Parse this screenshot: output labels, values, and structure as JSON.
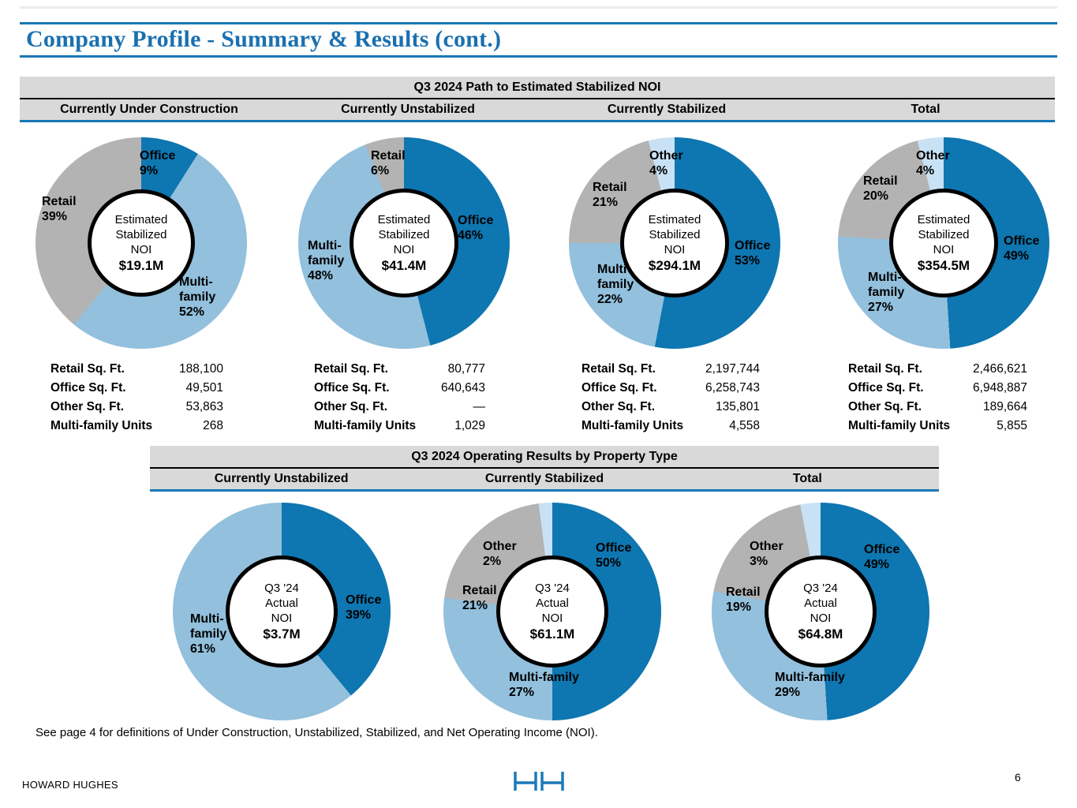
{
  "slide": {
    "title": "Company Profile - Summary & Results (cont.)",
    "note": "See page 4 for definitions of Under Construction, Unstabilized, Stabilized, and Net Operating Income (NOI).",
    "company": "HOWARD HUGHES",
    "page_number": "6",
    "logo_icon": "hh-logo"
  },
  "colors": {
    "office": "#0e76b0",
    "multifamily": "#92c0dd",
    "retail": "#b3b3b3",
    "other": "#c8e1f4",
    "accent": "#1878b6",
    "band": "#d9d9d9",
    "title_blue": "#1a70b0"
  },
  "section1": {
    "title": "Q3 2024 Path to Estimated Stabilized NOI",
    "columns": [
      "Currently Under Construction",
      "Currently Unstabilized",
      "Currently Stabilized",
      "Total"
    ],
    "stats_row_labels": [
      "Retail Sq. Ft.",
      "Office Sq. Ft.",
      "Other Sq. Ft.",
      "Multi-family Units"
    ],
    "stats": [
      {
        "column": "Currently Under Construction",
        "values": [
          "188,100",
          "49,501",
          "53,863",
          "268"
        ]
      },
      {
        "column": "Currently Unstabilized",
        "values": [
          "80,777",
          "640,643",
          "—",
          "1,029"
        ]
      },
      {
        "column": "Currently Stabilized",
        "values": [
          "2,197,744",
          "6,258,743",
          "135,801",
          "4,558"
        ]
      },
      {
        "column": "Total",
        "values": [
          "2,466,621",
          "6,948,887",
          "189,664",
          "5,855"
        ]
      }
    ]
  },
  "section2": {
    "title": "Q3 2024 Operating Results by Property Type",
    "columns": [
      "Currently Unstabilized",
      "Currently Stabilized",
      "Total"
    ]
  },
  "chart_data": [
    {
      "id": "c1",
      "type": "pie",
      "subtype": "donut",
      "section": "Q3 2024 Path to Estimated Stabilized NOI",
      "column": "Currently Under Construction",
      "center_lines": [
        "Estimated",
        "Stabilized",
        "NOI"
      ],
      "center_value": "$19.1M",
      "slices": [
        {
          "key": "office",
          "name": "Office",
          "pct": 9,
          "label": [
            "Office",
            "9%"
          ]
        },
        {
          "key": "multifamily",
          "name": "Multi-family",
          "pct": 52,
          "label": [
            "Multi-",
            "family",
            "52%"
          ]
        },
        {
          "key": "retail",
          "name": "Retail",
          "pct": 39,
          "label": [
            "Retail",
            "39%"
          ]
        }
      ]
    },
    {
      "id": "c2",
      "type": "pie",
      "subtype": "donut",
      "section": "Q3 2024 Path to Estimated Stabilized NOI",
      "column": "Currently Unstabilized",
      "center_lines": [
        "Estimated",
        "Stabilized",
        "NOI"
      ],
      "center_value": "$41.4M",
      "slices": [
        {
          "key": "office",
          "name": "Office",
          "pct": 46,
          "label": [
            "Office",
            "46%"
          ]
        },
        {
          "key": "multifamily",
          "name": "Multi-family",
          "pct": 48,
          "label": [
            "Multi-",
            "family",
            "48%"
          ]
        },
        {
          "key": "retail",
          "name": "Retail",
          "pct": 6,
          "label": [
            "Retail",
            "6%"
          ]
        }
      ]
    },
    {
      "id": "c3",
      "type": "pie",
      "subtype": "donut",
      "section": "Q3 2024 Path to Estimated Stabilized NOI",
      "column": "Currently Stabilized",
      "center_lines": [
        "Estimated",
        "Stabilized",
        "NOI"
      ],
      "center_value": "$294.1M",
      "slices": [
        {
          "key": "office",
          "name": "Office",
          "pct": 53,
          "label": [
            "Office",
            "53%"
          ]
        },
        {
          "key": "multifamily",
          "name": "Multi-family",
          "pct": 22,
          "label": [
            "Multi",
            "family",
            "22%"
          ]
        },
        {
          "key": "retail",
          "name": "Retail",
          "pct": 21,
          "label": [
            "Retail",
            "21%"
          ]
        },
        {
          "key": "other",
          "name": "Other",
          "pct": 4,
          "label": [
            "Other",
            "4%"
          ]
        }
      ]
    },
    {
      "id": "c4",
      "type": "pie",
      "subtype": "donut",
      "section": "Q3 2024 Path to Estimated Stabilized NOI",
      "column": "Total",
      "center_lines": [
        "Estimated",
        "Stabilized",
        "NOI"
      ],
      "center_value": "$354.5M",
      "slices": [
        {
          "key": "office",
          "name": "Office",
          "pct": 49,
          "label": [
            "Office",
            "49%"
          ]
        },
        {
          "key": "multifamily",
          "name": "Multi-family",
          "pct": 27,
          "label": [
            "Multi-",
            "family",
            "27%"
          ]
        },
        {
          "key": "retail",
          "name": "Retail",
          "pct": 20,
          "label": [
            "Retail",
            "20%"
          ]
        },
        {
          "key": "other",
          "name": "Other",
          "pct": 4,
          "label": [
            "Other",
            "4%"
          ]
        }
      ]
    },
    {
      "id": "c5",
      "type": "pie",
      "subtype": "donut",
      "section": "Q3 2024 Operating Results by Property Type",
      "column": "Currently Unstabilized",
      "center_lines": [
        "Q3 '24",
        "Actual",
        "NOI"
      ],
      "center_value": "$3.7M",
      "slices": [
        {
          "key": "office",
          "name": "Office",
          "pct": 39,
          "label": [
            "Office",
            "39%"
          ]
        },
        {
          "key": "multifamily",
          "name": "Multi-family",
          "pct": 61,
          "label": [
            "Multi-",
            "family",
            "61%"
          ]
        }
      ]
    },
    {
      "id": "c6",
      "type": "pie",
      "subtype": "donut",
      "section": "Q3 2024 Operating Results by Property Type",
      "column": "Currently Stabilized",
      "center_lines": [
        "Q3 '24",
        "Actual",
        "NOI"
      ],
      "center_value": "$61.1M",
      "slices": [
        {
          "key": "office",
          "name": "Office",
          "pct": 50,
          "label": [
            "Office",
            "50%"
          ]
        },
        {
          "key": "multifamily",
          "name": "Multi-family",
          "pct": 27,
          "label": [
            "Multi-family",
            "27%"
          ]
        },
        {
          "key": "retail",
          "name": "Retail",
          "pct": 21,
          "label": [
            "Retail",
            "21%"
          ]
        },
        {
          "key": "other",
          "name": "Other",
          "pct": 2,
          "label": [
            "Other",
            "2%"
          ]
        }
      ]
    },
    {
      "id": "c7",
      "type": "pie",
      "subtype": "donut",
      "section": "Q3 2024 Operating Results by Property Type",
      "column": "Total",
      "center_lines": [
        "Q3 '24",
        "Actual",
        "NOI"
      ],
      "center_value": "$64.8M",
      "slices": [
        {
          "key": "office",
          "name": "Office",
          "pct": 49,
          "label": [
            "Office",
            "49%"
          ]
        },
        {
          "key": "multifamily",
          "name": "Multi-family",
          "pct": 29,
          "label": [
            "Multi-family",
            "29%"
          ]
        },
        {
          "key": "retail",
          "name": "Retail",
          "pct": 19,
          "label": [
            "Retail",
            "19%"
          ]
        },
        {
          "key": "other",
          "name": "Other",
          "pct": 3,
          "label": [
            "Other",
            "3%"
          ]
        }
      ]
    }
  ]
}
